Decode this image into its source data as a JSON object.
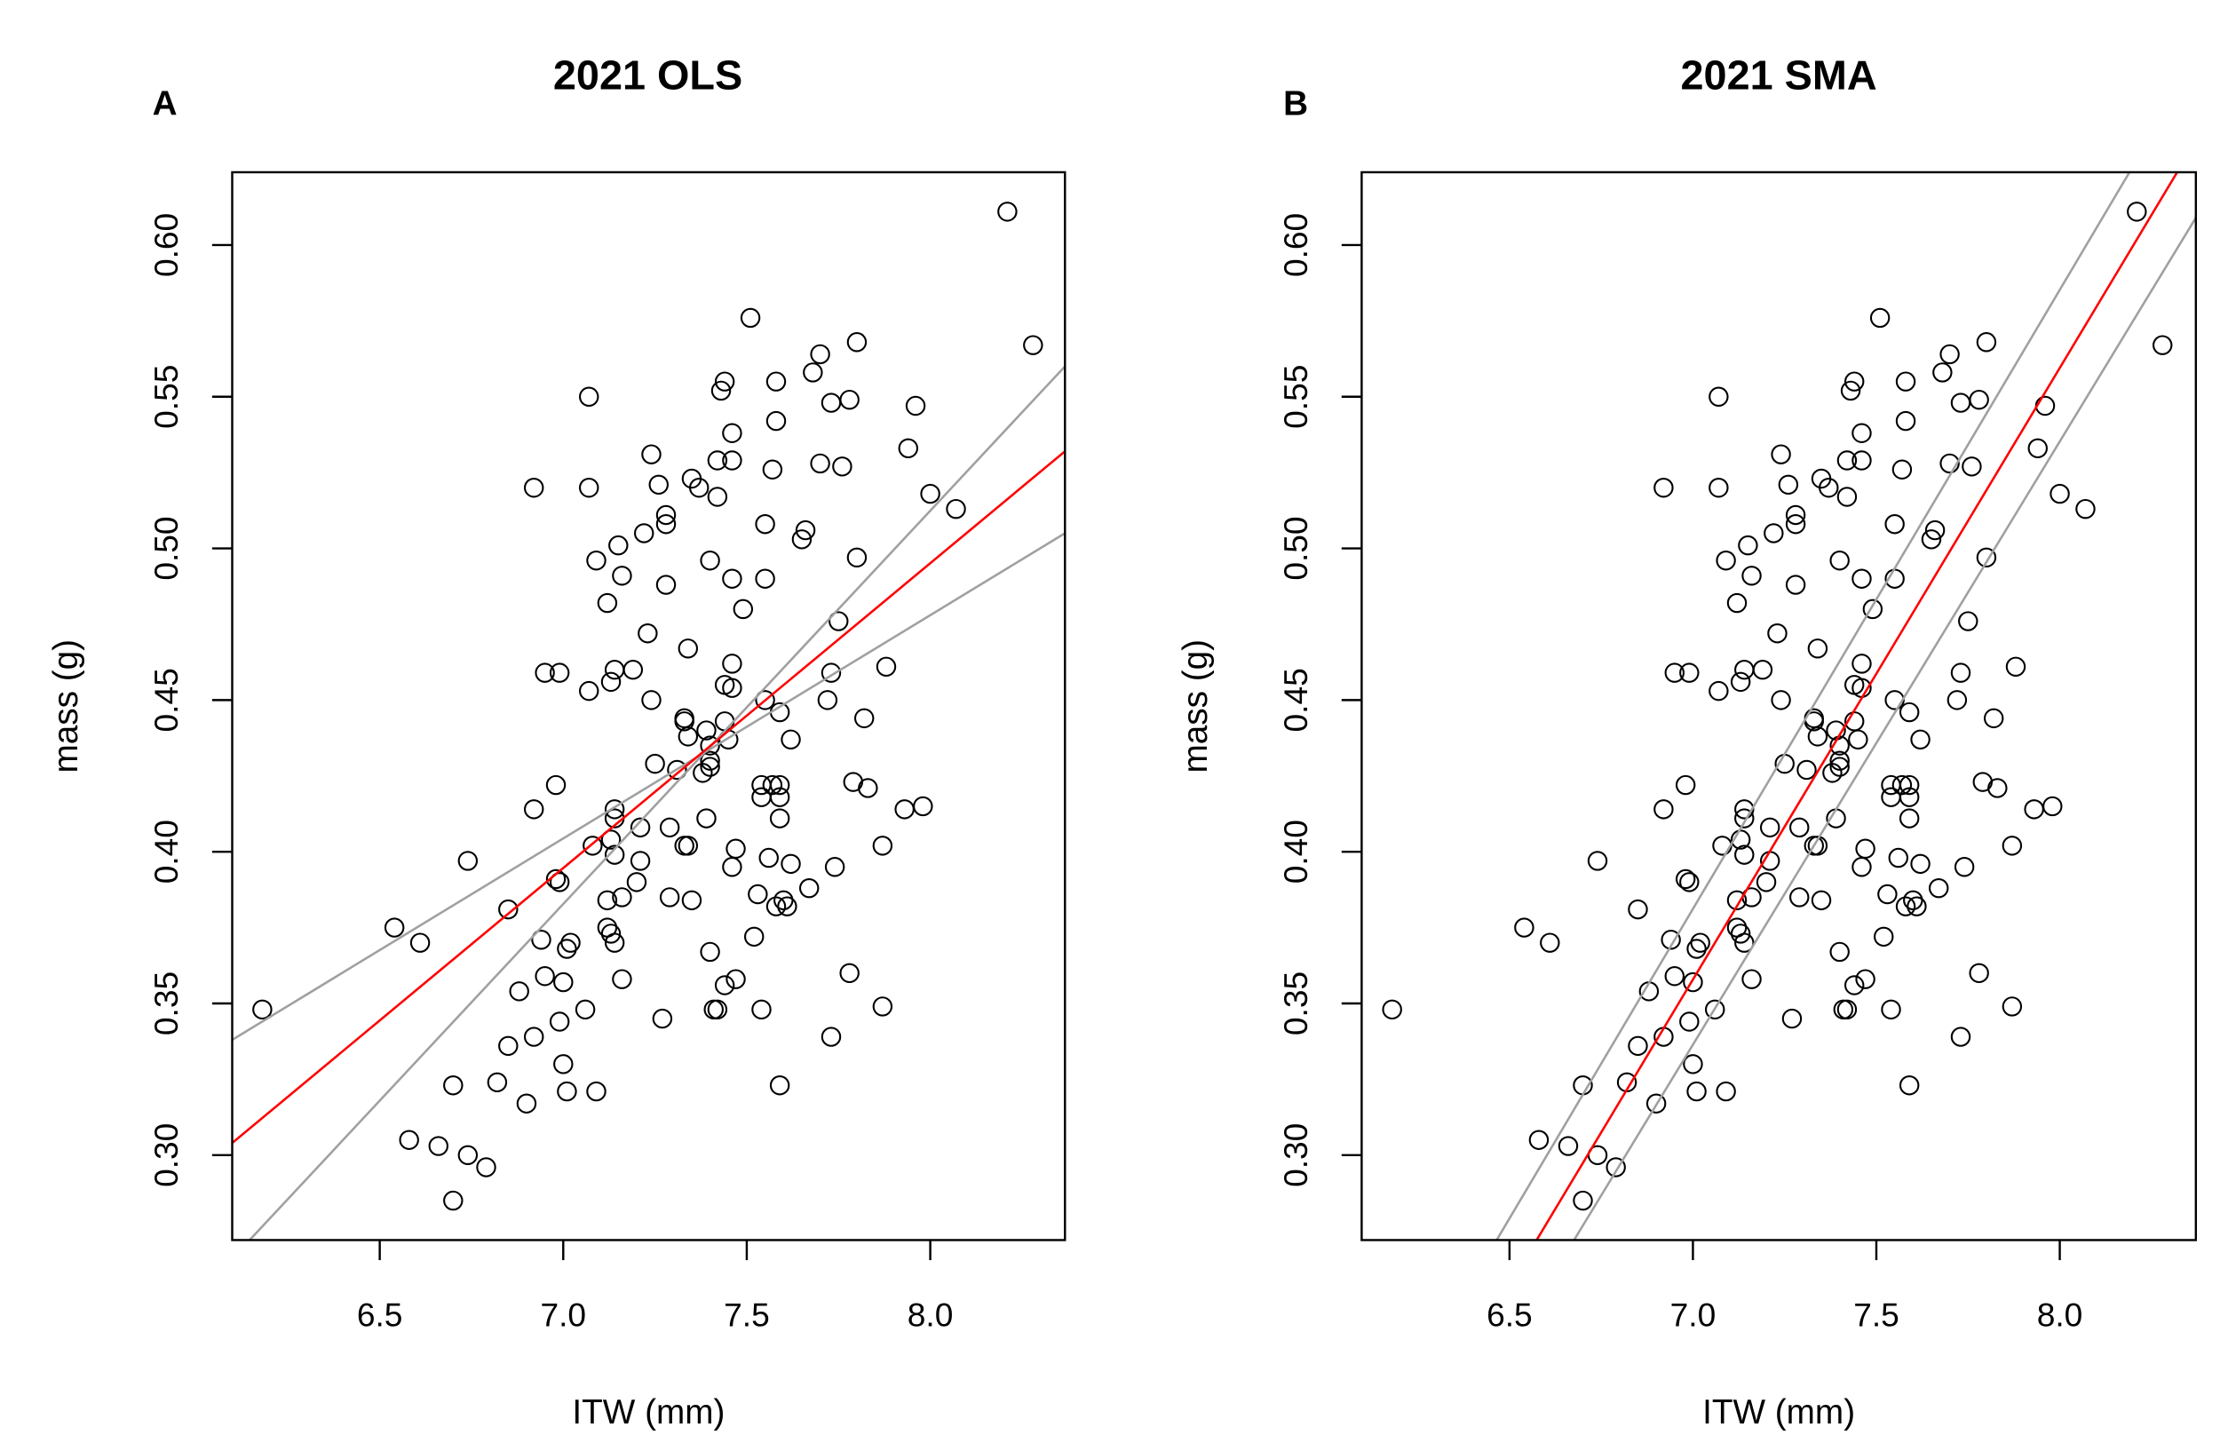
{
  "chart_data": [
    {
      "type": "scatter",
      "panel_label": "A",
      "title": "2021 OLS",
      "xlabel": "ITW (mm)",
      "ylabel": "mass (g)",
      "xlim": [
        6.098,
        8.367
      ],
      "ylim": [
        0.272,
        0.624
      ],
      "xticks": [
        "6.5",
        "7.0",
        "7.5",
        "8.0"
      ],
      "yticks": [
        "0.30",
        "0.35",
        "0.40",
        "0.45",
        "0.50",
        "0.55",
        "0.60"
      ],
      "point_style": "open circle",
      "fit_line": {
        "color": "#ff0000",
        "x": [
          6.098,
          8.367
        ],
        "y": [
          0.304,
          0.532
        ]
      },
      "ci_lines": [
        {
          "color": "#a0a0a0",
          "x": [
            6.098,
            8.367
          ],
          "y": [
            0.338,
            0.505
          ]
        },
        {
          "color": "#a0a0a0",
          "x": [
            6.13,
            8.367
          ],
          "y": [
            0.27,
            0.56
          ]
        }
      ]
    },
    {
      "type": "scatter",
      "panel_label": "B",
      "title": "2021 SMA",
      "xlabel": "ITW (mm)",
      "ylabel": "mass (g)",
      "xlim": [
        6.097,
        8.371
      ],
      "ylim": [
        0.272,
        0.624
      ],
      "xticks": [
        "6.5",
        "7.0",
        "7.5",
        "8.0"
      ],
      "yticks": [
        "0.30",
        "0.35",
        "0.40",
        "0.45",
        "0.50",
        "0.55",
        "0.60"
      ],
      "point_style": "open circle",
      "fit_line": {
        "color": "#ff0000",
        "x": [
          6.574,
          8.32
        ],
        "y": [
          0.272,
          0.624
        ]
      },
      "ci_lines": [
        {
          "color": "#a0a0a0",
          "x": [
            6.465,
            8.19
          ],
          "y": [
            0.272,
            0.624
          ]
        },
        {
          "color": "#a0a0a0",
          "x": [
            6.676,
            8.371
          ],
          "y": [
            0.272,
            0.609
          ]
        }
      ]
    }
  ],
  "points": [
    [
      6.18,
      0.348
    ],
    [
      6.54,
      0.375
    ],
    [
      6.61,
      0.37
    ],
    [
      6.74,
      0.397
    ],
    [
      6.85,
      0.381
    ],
    [
      6.58,
      0.305
    ],
    [
      6.66,
      0.303
    ],
    [
      6.74,
      0.3
    ],
    [
      6.79,
      0.296
    ],
    [
      6.7,
      0.285
    ],
    [
      6.7,
      0.323
    ],
    [
      6.82,
      0.324
    ],
    [
      6.85,
      0.336
    ],
    [
      6.88,
      0.354
    ],
    [
      6.9,
      0.317
    ],
    [
      6.92,
      0.339
    ],
    [
      6.94,
      0.371
    ],
    [
      6.95,
      0.359
    ],
    [
      6.92,
      0.414
    ],
    [
      6.98,
      0.422
    ],
    [
      6.98,
      0.391
    ],
    [
      6.99,
      0.39
    ],
    [
      6.99,
      0.344
    ],
    [
      7.0,
      0.33
    ],
    [
      7.01,
      0.321
    ],
    [
      7.0,
      0.357
    ],
    [
      7.01,
      0.368
    ],
    [
      7.02,
      0.37
    ],
    [
      7.06,
      0.348
    ],
    [
      7.09,
      0.321
    ],
    [
      7.08,
      0.402
    ],
    [
      7.12,
      0.375
    ],
    [
      7.13,
      0.373
    ],
    [
      7.14,
      0.37
    ],
    [
      7.12,
      0.384
    ],
    [
      7.13,
      0.404
    ],
    [
      7.14,
      0.414
    ],
    [
      7.14,
      0.411
    ],
    [
      7.14,
      0.399
    ],
    [
      7.16,
      0.385
    ],
    [
      7.16,
      0.358
    ],
    [
      7.2,
      0.39
    ],
    [
      7.21,
      0.397
    ],
    [
      7.21,
      0.408
    ],
    [
      7.25,
      0.429
    ],
    [
      7.27,
      0.345
    ],
    [
      7.29,
      0.385
    ],
    [
      7.29,
      0.408
    ],
    [
      7.33,
      0.402
    ],
    [
      7.34,
      0.402
    ],
    [
      7.35,
      0.384
    ],
    [
      7.07,
      0.55
    ],
    [
      6.92,
      0.52
    ],
    [
      7.07,
      0.52
    ],
    [
      6.95,
      0.459
    ],
    [
      6.99,
      0.459
    ],
    [
      7.07,
      0.453
    ],
    [
      7.09,
      0.496
    ],
    [
      7.12,
      0.482
    ],
    [
      7.13,
      0.456
    ],
    [
      7.14,
      0.46
    ],
    [
      7.15,
      0.501
    ],
    [
      7.16,
      0.491
    ],
    [
      7.19,
      0.46
    ],
    [
      7.22,
      0.505
    ],
    [
      7.23,
      0.472
    ],
    [
      7.24,
      0.531
    ],
    [
      7.24,
      0.45
    ],
    [
      7.26,
      0.521
    ],
    [
      7.28,
      0.511
    ],
    [
      7.28,
      0.508
    ],
    [
      7.28,
      0.488
    ],
    [
      7.31,
      0.427
    ],
    [
      7.33,
      0.444
    ],
    [
      7.33,
      0.443
    ],
    [
      7.34,
      0.438
    ],
    [
      7.34,
      0.467
    ],
    [
      7.35,
      0.523
    ],
    [
      7.37,
      0.52
    ],
    [
      7.4,
      0.496
    ],
    [
      7.39,
      0.44
    ],
    [
      7.38,
      0.426
    ],
    [
      7.4,
      0.43
    ],
    [
      7.4,
      0.428
    ],
    [
      7.4,
      0.435
    ],
    [
      7.39,
      0.411
    ],
    [
      7.4,
      0.367
    ],
    [
      7.41,
      0.348
    ],
    [
      7.42,
      0.348
    ],
    [
      7.42,
      0.517
    ],
    [
      7.42,
      0.529
    ],
    [
      7.43,
      0.552
    ],
    [
      7.44,
      0.555
    ],
    [
      7.44,
      0.455
    ],
    [
      7.44,
      0.443
    ],
    [
      7.45,
      0.437
    ],
    [
      7.44,
      0.356
    ],
    [
      7.46,
      0.538
    ],
    [
      7.46,
      0.529
    ],
    [
      7.46,
      0.49
    ],
    [
      7.46,
      0.462
    ],
    [
      7.46,
      0.454
    ],
    [
      7.47,
      0.358
    ],
    [
      7.46,
      0.395
    ],
    [
      7.47,
      0.401
    ],
    [
      7.49,
      0.48
    ],
    [
      7.51,
      0.576
    ],
    [
      7.52,
      0.372
    ],
    [
      7.53,
      0.386
    ],
    [
      7.54,
      0.422
    ],
    [
      7.54,
      0.418
    ],
    [
      7.54,
      0.348
    ],
    [
      7.55,
      0.508
    ],
    [
      7.55,
      0.49
    ],
    [
      7.55,
      0.45
    ],
    [
      7.56,
      0.398
    ],
    [
      7.57,
      0.422
    ],
    [
      7.57,
      0.526
    ],
    [
      7.58,
      0.555
    ],
    [
      7.58,
      0.542
    ],
    [
      7.59,
      0.323
    ],
    [
      7.59,
      0.422
    ],
    [
      7.59,
      0.418
    ],
    [
      7.59,
      0.411
    ],
    [
      7.59,
      0.446
    ],
    [
      7.58,
      0.382
    ],
    [
      7.6,
      0.384
    ],
    [
      7.61,
      0.382
    ],
    [
      7.62,
      0.396
    ],
    [
      7.62,
      0.437
    ],
    [
      7.65,
      0.503
    ],
    [
      7.66,
      0.506
    ],
    [
      7.67,
      0.388
    ],
    [
      7.68,
      0.558
    ],
    [
      7.7,
      0.564
    ],
    [
      7.7,
      0.528
    ],
    [
      7.73,
      0.548
    ],
    [
      7.73,
      0.459
    ],
    [
      7.72,
      0.45
    ],
    [
      7.75,
      0.476
    ],
    [
      7.74,
      0.395
    ],
    [
      7.73,
      0.339
    ],
    [
      7.76,
      0.527
    ],
    [
      7.78,
      0.36
    ],
    [
      7.78,
      0.549
    ],
    [
      7.8,
      0.568
    ],
    [
      7.8,
      0.497
    ],
    [
      7.79,
      0.423
    ],
    [
      7.82,
      0.444
    ],
    [
      7.83,
      0.421
    ],
    [
      7.87,
      0.402
    ],
    [
      7.87,
      0.349
    ],
    [
      7.88,
      0.461
    ],
    [
      7.93,
      0.414
    ],
    [
      7.94,
      0.533
    ],
    [
      7.96,
      0.547
    ],
    [
      7.98,
      0.415
    ],
    [
      8.0,
      0.518
    ],
    [
      8.07,
      0.513
    ],
    [
      8.21,
      0.611
    ],
    [
      8.28,
      0.567
    ]
  ]
}
